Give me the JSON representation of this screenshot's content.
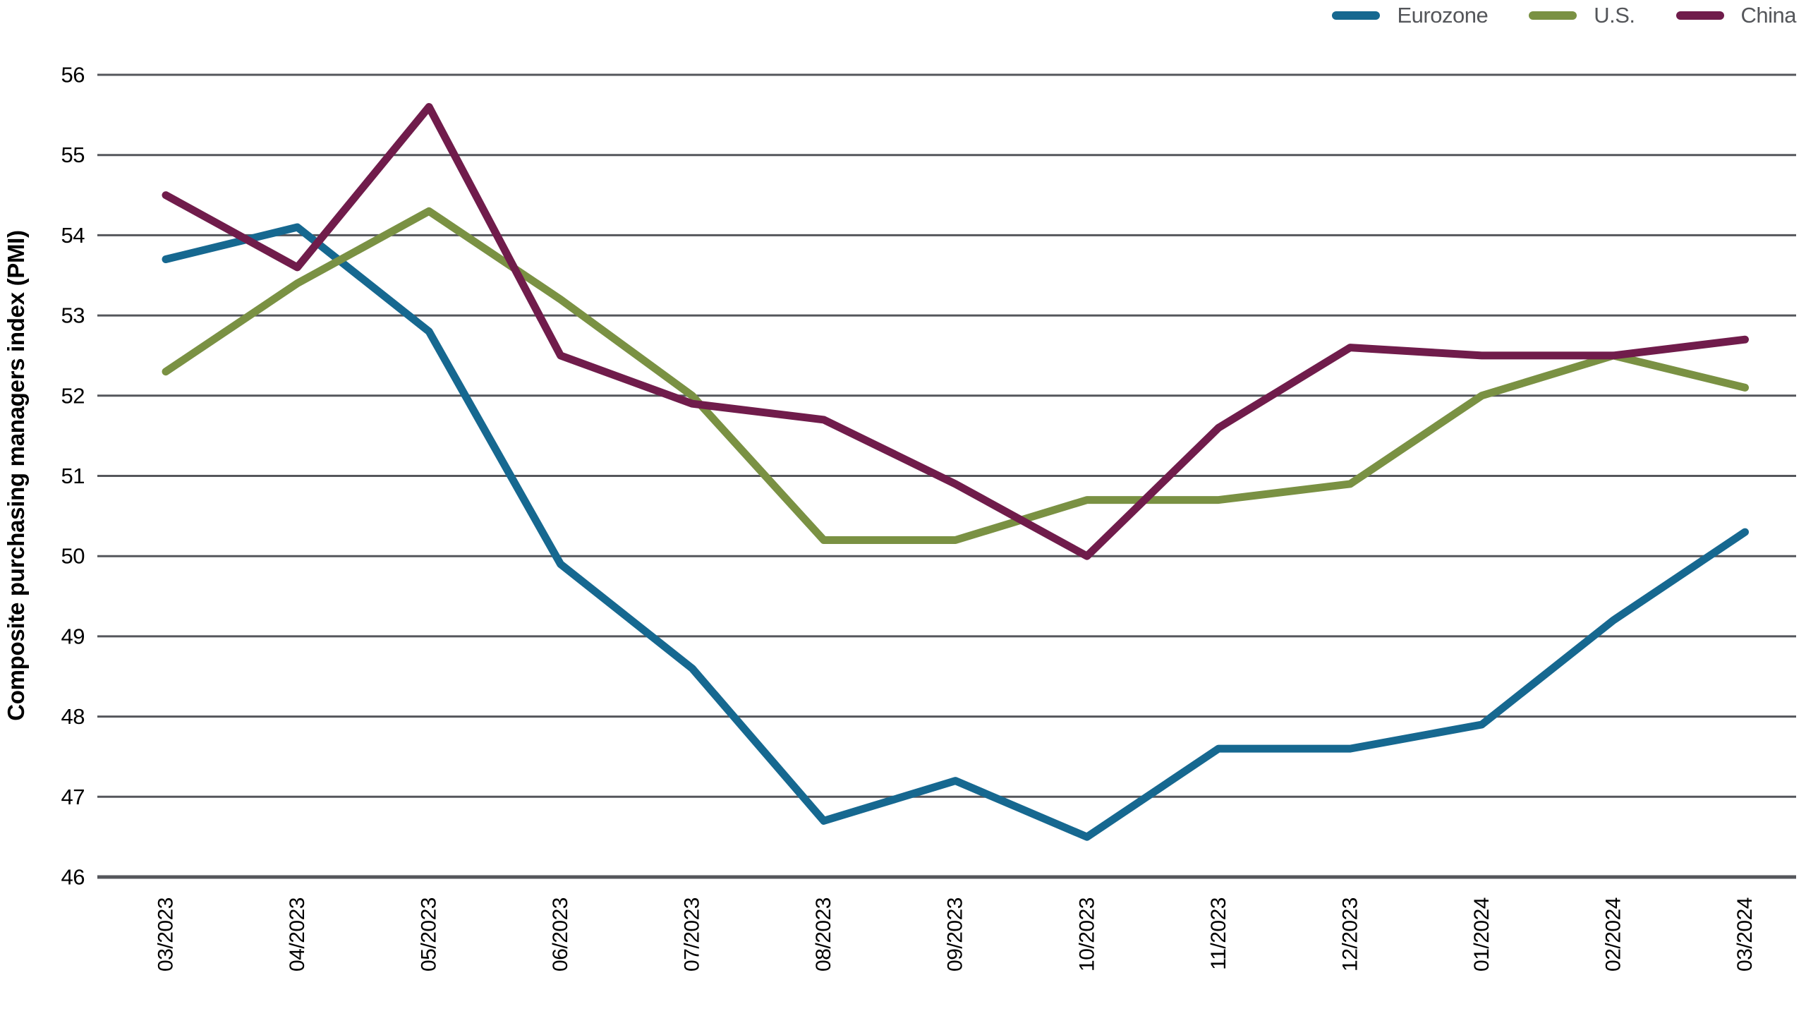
{
  "legend": {
    "items": [
      {
        "label": "Eurozone",
        "color": "#166890"
      },
      {
        "label": "U.S.",
        "color": "#7A9143"
      },
      {
        "label": "China",
        "color": "#701C4B"
      }
    ]
  },
  "chart_data": {
    "type": "line",
    "title": "",
    "xlabel": "",
    "ylabel": "Composite purchasing managers index (PMI)",
    "categories": [
      "03/2023",
      "04/2023",
      "05/2023",
      "06/2023",
      "07/2023",
      "08/2023",
      "09/2023",
      "10/2023",
      "11/2023",
      "12/2023",
      "01/2024",
      "02/2024",
      "03/2024"
    ],
    "series": [
      {
        "name": "Eurozone",
        "color": "#166890",
        "values": [
          53.7,
          54.1,
          52.8,
          49.9,
          48.6,
          46.7,
          47.2,
          46.5,
          47.6,
          47.6,
          47.9,
          49.2,
          50.3
        ]
      },
      {
        "name": "U.S.",
        "color": "#7A9143",
        "values": [
          52.3,
          53.4,
          54.3,
          53.2,
          52.0,
          50.2,
          50.2,
          50.7,
          50.7,
          50.9,
          52.0,
          52.5,
          52.1
        ]
      },
      {
        "name": "China",
        "color": "#701C4B",
        "values": [
          54.5,
          53.6,
          55.6,
          52.5,
          51.9,
          51.7,
          50.9,
          50.0,
          51.6,
          52.6,
          52.5,
          52.5,
          52.7
        ]
      }
    ],
    "ylim": [
      46,
      56
    ],
    "ytick_step": 1,
    "grid": "horizontal",
    "legend_position": "top-right",
    "colors": {
      "gridline": "#54565B",
      "axis": "#54565B",
      "tick_labels": "#000000",
      "legend_text": "#54565A",
      "background": "#FFFFFF"
    }
  }
}
